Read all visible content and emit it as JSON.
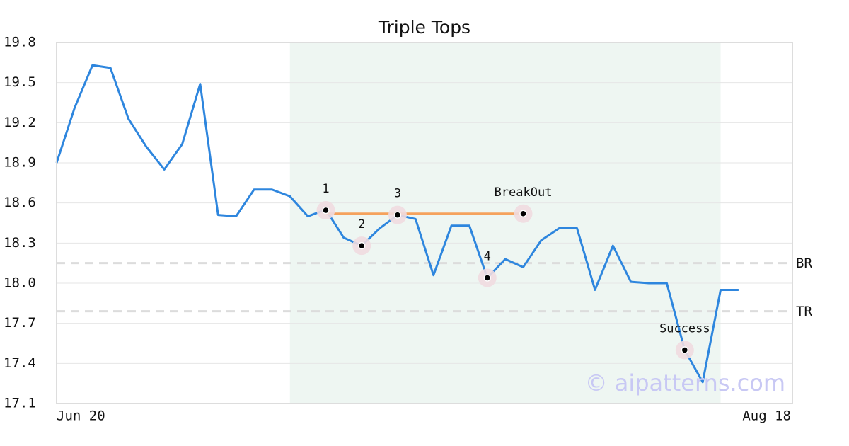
{
  "chart_data": {
    "type": "line",
    "title": "Triple Tops",
    "x": [
      0,
      1,
      2,
      3,
      4,
      5,
      6,
      7,
      8,
      9,
      10,
      11,
      12,
      13,
      14,
      15,
      16,
      17,
      18,
      19,
      20,
      21,
      22,
      23,
      24,
      25,
      26,
      27,
      28,
      29,
      30,
      31,
      32,
      33,
      34,
      35,
      36,
      37,
      38
    ],
    "series": [
      {
        "color": "#2e86de",
        "values": [
          18.9,
          19.31,
          19.63,
          19.61,
          19.23,
          19.02,
          18.85,
          19.04,
          19.49,
          18.51,
          18.5,
          18.7,
          18.7,
          18.65,
          18.5,
          18.55,
          18.34,
          18.28,
          18.41,
          18.51,
          18.48,
          18.06,
          18.43,
          18.43,
          18.04,
          18.18,
          18.12,
          18.32,
          18.41,
          18.41,
          17.95,
          18.28,
          18.01,
          18.0,
          18.0,
          17.5,
          17.26,
          17.95,
          17.95
        ]
      }
    ],
    "xlim": [
      0,
      41
    ],
    "xticks": [
      {
        "value": 0,
        "label": "Jun 20"
      },
      {
        "value": 41,
        "label": "Aug 18"
      }
    ],
    "ylim": [
      17.1,
      19.8
    ],
    "yticks": [
      17.1,
      17.4,
      17.7,
      {
        "value": 18.0,
        "label": "18.0"
      },
      18.3,
      18.6,
      18.9,
      19.2,
      19.5,
      19.8
    ],
    "grid": true,
    "shaded_range": {
      "x": [
        13,
        37
      ],
      "color": "#eef6f2"
    },
    "pattern_line": {
      "x": [
        15,
        26
      ],
      "y": 18.52,
      "color": "#f5a25d"
    },
    "levels": [
      {
        "label": "BR",
        "y": 18.15
      },
      {
        "label": "TR",
        "y": 17.79
      }
    ],
    "markers": [
      {
        "label": "1",
        "x": 15,
        "y": 18.545
      },
      {
        "label": "2",
        "x": 17,
        "y": 18.28
      },
      {
        "label": "3",
        "x": 19,
        "y": 18.51
      },
      {
        "label": "4",
        "x": 24,
        "y": 18.04
      },
      {
        "label": "BreakOut",
        "x": 26,
        "y": 18.52
      },
      {
        "label": "Success",
        "x": 35,
        "y": 17.5
      }
    ],
    "watermark": "© aipatterns.com"
  }
}
